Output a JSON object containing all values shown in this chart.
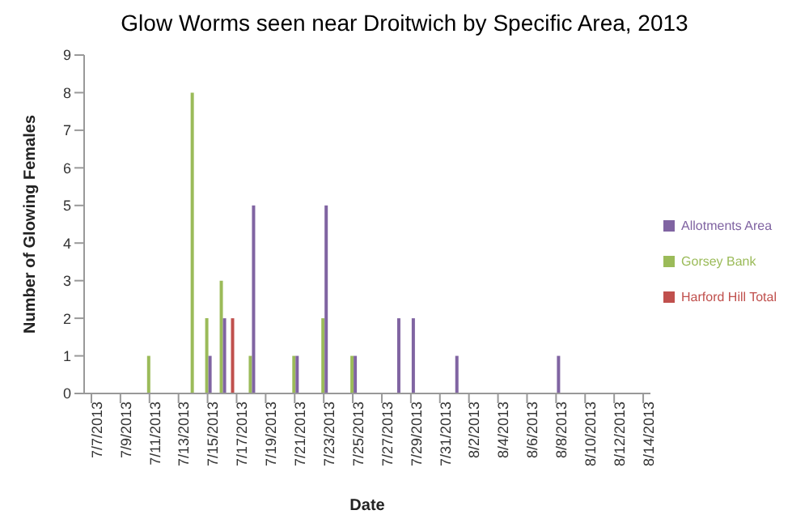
{
  "chart_data": {
    "type": "bar",
    "title": "Glow Worms seen near Droitwich by Specific Area, 2013",
    "xlabel": "Date",
    "ylabel": "Number of Glowing Females",
    "x": [
      "2013-07-11",
      "2013-07-14",
      "2013-07-15",
      "2013-07-16",
      "2013-07-17",
      "2013-07-18",
      "2013-07-21",
      "2013-07-23",
      "2013-07-25",
      "2013-07-28",
      "2013-07-29",
      "2013-08-01",
      "2013-08-08"
    ],
    "series": [
      {
        "name": "Harford Hill Total",
        "color": "#c0504d",
        "values": [
          null,
          null,
          null,
          null,
          2,
          null,
          null,
          null,
          null,
          null,
          null,
          null,
          null
        ]
      },
      {
        "name": "Gorsey Bank",
        "color": "#9bbb59",
        "values": [
          1,
          8,
          2,
          3,
          null,
          1,
          1,
          2,
          1,
          null,
          null,
          null,
          null
        ]
      },
      {
        "name": "Allotments Area",
        "color": "#8064a2",
        "values": [
          null,
          null,
          1,
          2,
          null,
          5,
          1,
          5,
          1,
          2,
          2,
          1,
          1
        ]
      }
    ],
    "xlim": [
      "2013-07-06T12:00",
      "2013-08-14T12:00"
    ],
    "xticks": [
      {
        "value": "2013-07-07",
        "label": "7/7/2013"
      },
      {
        "value": "2013-07-09",
        "label": "7/9/2013"
      },
      {
        "value": "2013-07-11",
        "label": "7/11/2013"
      },
      {
        "value": "2013-07-13",
        "label": "7/13/2013"
      },
      {
        "value": "2013-07-15",
        "label": "7/15/2013"
      },
      {
        "value": "2013-07-17",
        "label": "7/17/2013"
      },
      {
        "value": "2013-07-19",
        "label": "7/19/2013"
      },
      {
        "value": "2013-07-21",
        "label": "7/21/2013"
      },
      {
        "value": "2013-07-23",
        "label": "7/23/2013"
      },
      {
        "value": "2013-07-25",
        "label": "7/25/2013"
      },
      {
        "value": "2013-07-27",
        "label": "7/27/2013"
      },
      {
        "value": "2013-07-29",
        "label": "7/29/2013"
      },
      {
        "value": "2013-07-31",
        "label": "7/31/2013"
      },
      {
        "value": "2013-08-02",
        "label": "8/2/2013"
      },
      {
        "value": "2013-08-04",
        "label": "8/4/2013"
      },
      {
        "value": "2013-08-06",
        "label": "8/6/2013"
      },
      {
        "value": "2013-08-08",
        "label": "8/8/2013"
      },
      {
        "value": "2013-08-10",
        "label": "8/10/2013"
      },
      {
        "value": "2013-08-12",
        "label": "8/12/2013"
      },
      {
        "value": "2013-08-14",
        "label": "8/14/2013"
      }
    ],
    "ylim": [
      0,
      9
    ],
    "yticks": [
      0,
      1,
      2,
      3,
      4,
      5,
      6,
      7,
      8,
      9
    ],
    "grid": false,
    "legend": "right"
  }
}
